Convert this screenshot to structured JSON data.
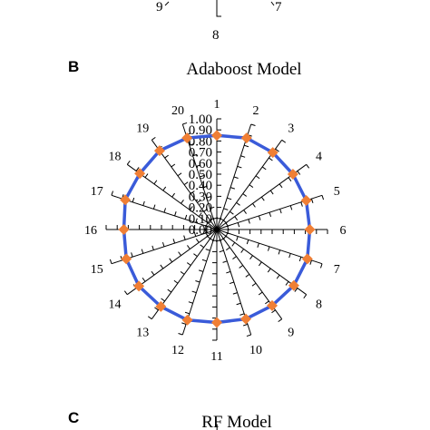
{
  "top_fragment": {
    "labels": [
      "9",
      "8",
      "7"
    ]
  },
  "panel_b": {
    "panel_letter": "B",
    "title": "Adaboost Model",
    "chart_data": {
      "type": "radar",
      "title": "Adaboost Model",
      "categories": [
        "1",
        "2",
        "3",
        "4",
        "5",
        "6",
        "7",
        "8",
        "9",
        "10",
        "11",
        "12",
        "13",
        "14",
        "15",
        "16",
        "17",
        "18",
        "19",
        "20"
      ],
      "series": [
        {
          "values": [
            0.85,
            0.87,
            0.86,
            0.85,
            0.85,
            0.84,
            0.86,
            0.86,
            0.85,
            0.85,
            0.84,
            0.86,
            0.86,
            0.87,
            0.86,
            0.84,
            0.87,
            0.86,
            0.88,
            0.87
          ]
        }
      ],
      "rlim": [
        0,
        1
      ],
      "radial_ticks": [
        "0.00",
        "0.10",
        "0.20",
        "0.30",
        "0.40",
        "0.50",
        "0.60",
        "0.70",
        "0.80",
        "0.90",
        "1.00"
      ],
      "line_color": "#3a5bd9",
      "marker_color": "#f07f35"
    }
  },
  "panel_c": {
    "panel_letter": "C",
    "title": "RF Model"
  }
}
